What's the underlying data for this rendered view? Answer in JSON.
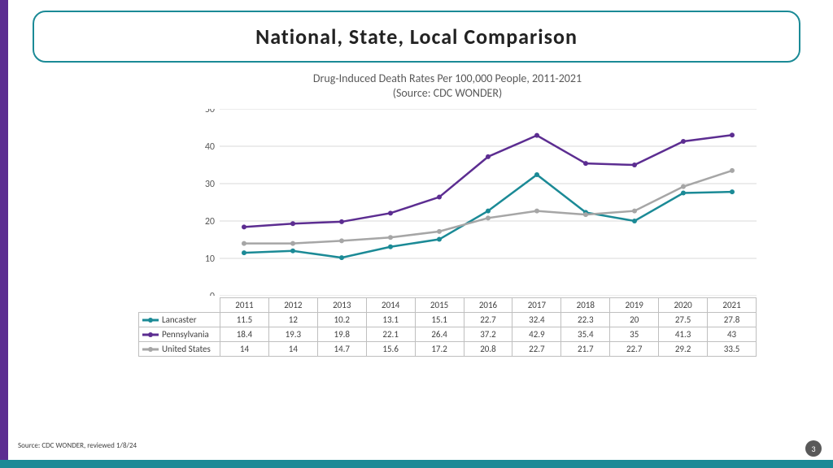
{
  "accent": {
    "purple": "#5c2d91",
    "teal": "#1b8a96"
  },
  "title": {
    "text": "National, State, Local Comparison",
    "fontsize": 26,
    "border_color": "#1b8a96"
  },
  "chart": {
    "title_line1": "Drug-Induced Death Rates Per 100,000 People, 2011-2021",
    "title_line2": "(Source: CDC WONDER)",
    "title_fontsize": 14,
    "ylim_min": 0,
    "ylim_max": 50,
    "ytick_step": 10,
    "ytick_fontsize": 12,
    "grid_color": "#d9d9d9",
    "background": "#ffffff",
    "years": [
      "2011",
      "2012",
      "2013",
      "2014",
      "2015",
      "2016",
      "2017",
      "2018",
      "2019",
      "2020",
      "2021"
    ],
    "series": [
      {
        "name": "Lancaster",
        "color": "#1b8a96",
        "marker": "circle",
        "values": [
          11.5,
          12,
          10.2,
          13.1,
          15.1,
          22.7,
          32.4,
          22.3,
          20,
          27.5,
          27.8
        ]
      },
      {
        "name": "Pennsylvania",
        "color": "#5c2d91",
        "marker": "circle",
        "values": [
          18.4,
          19.3,
          19.8,
          22.1,
          26.4,
          37.2,
          42.9,
          35.4,
          35,
          41.3,
          43
        ]
      },
      {
        "name": "United States",
        "color": "#a6a6a6",
        "marker": "circle",
        "values": [
          14,
          14,
          14.7,
          15.6,
          17.2,
          20.8,
          22.7,
          21.7,
          22.7,
          29.2,
          33.5
        ]
      }
    ],
    "table_fontsize": 11,
    "line_width": 2.5,
    "marker_size": 3
  },
  "footer": {
    "source": "Source: CDC WONDER, reviewed 1/8/24",
    "source_fontsize": 9,
    "page": "3",
    "page_fontsize": 10
  }
}
